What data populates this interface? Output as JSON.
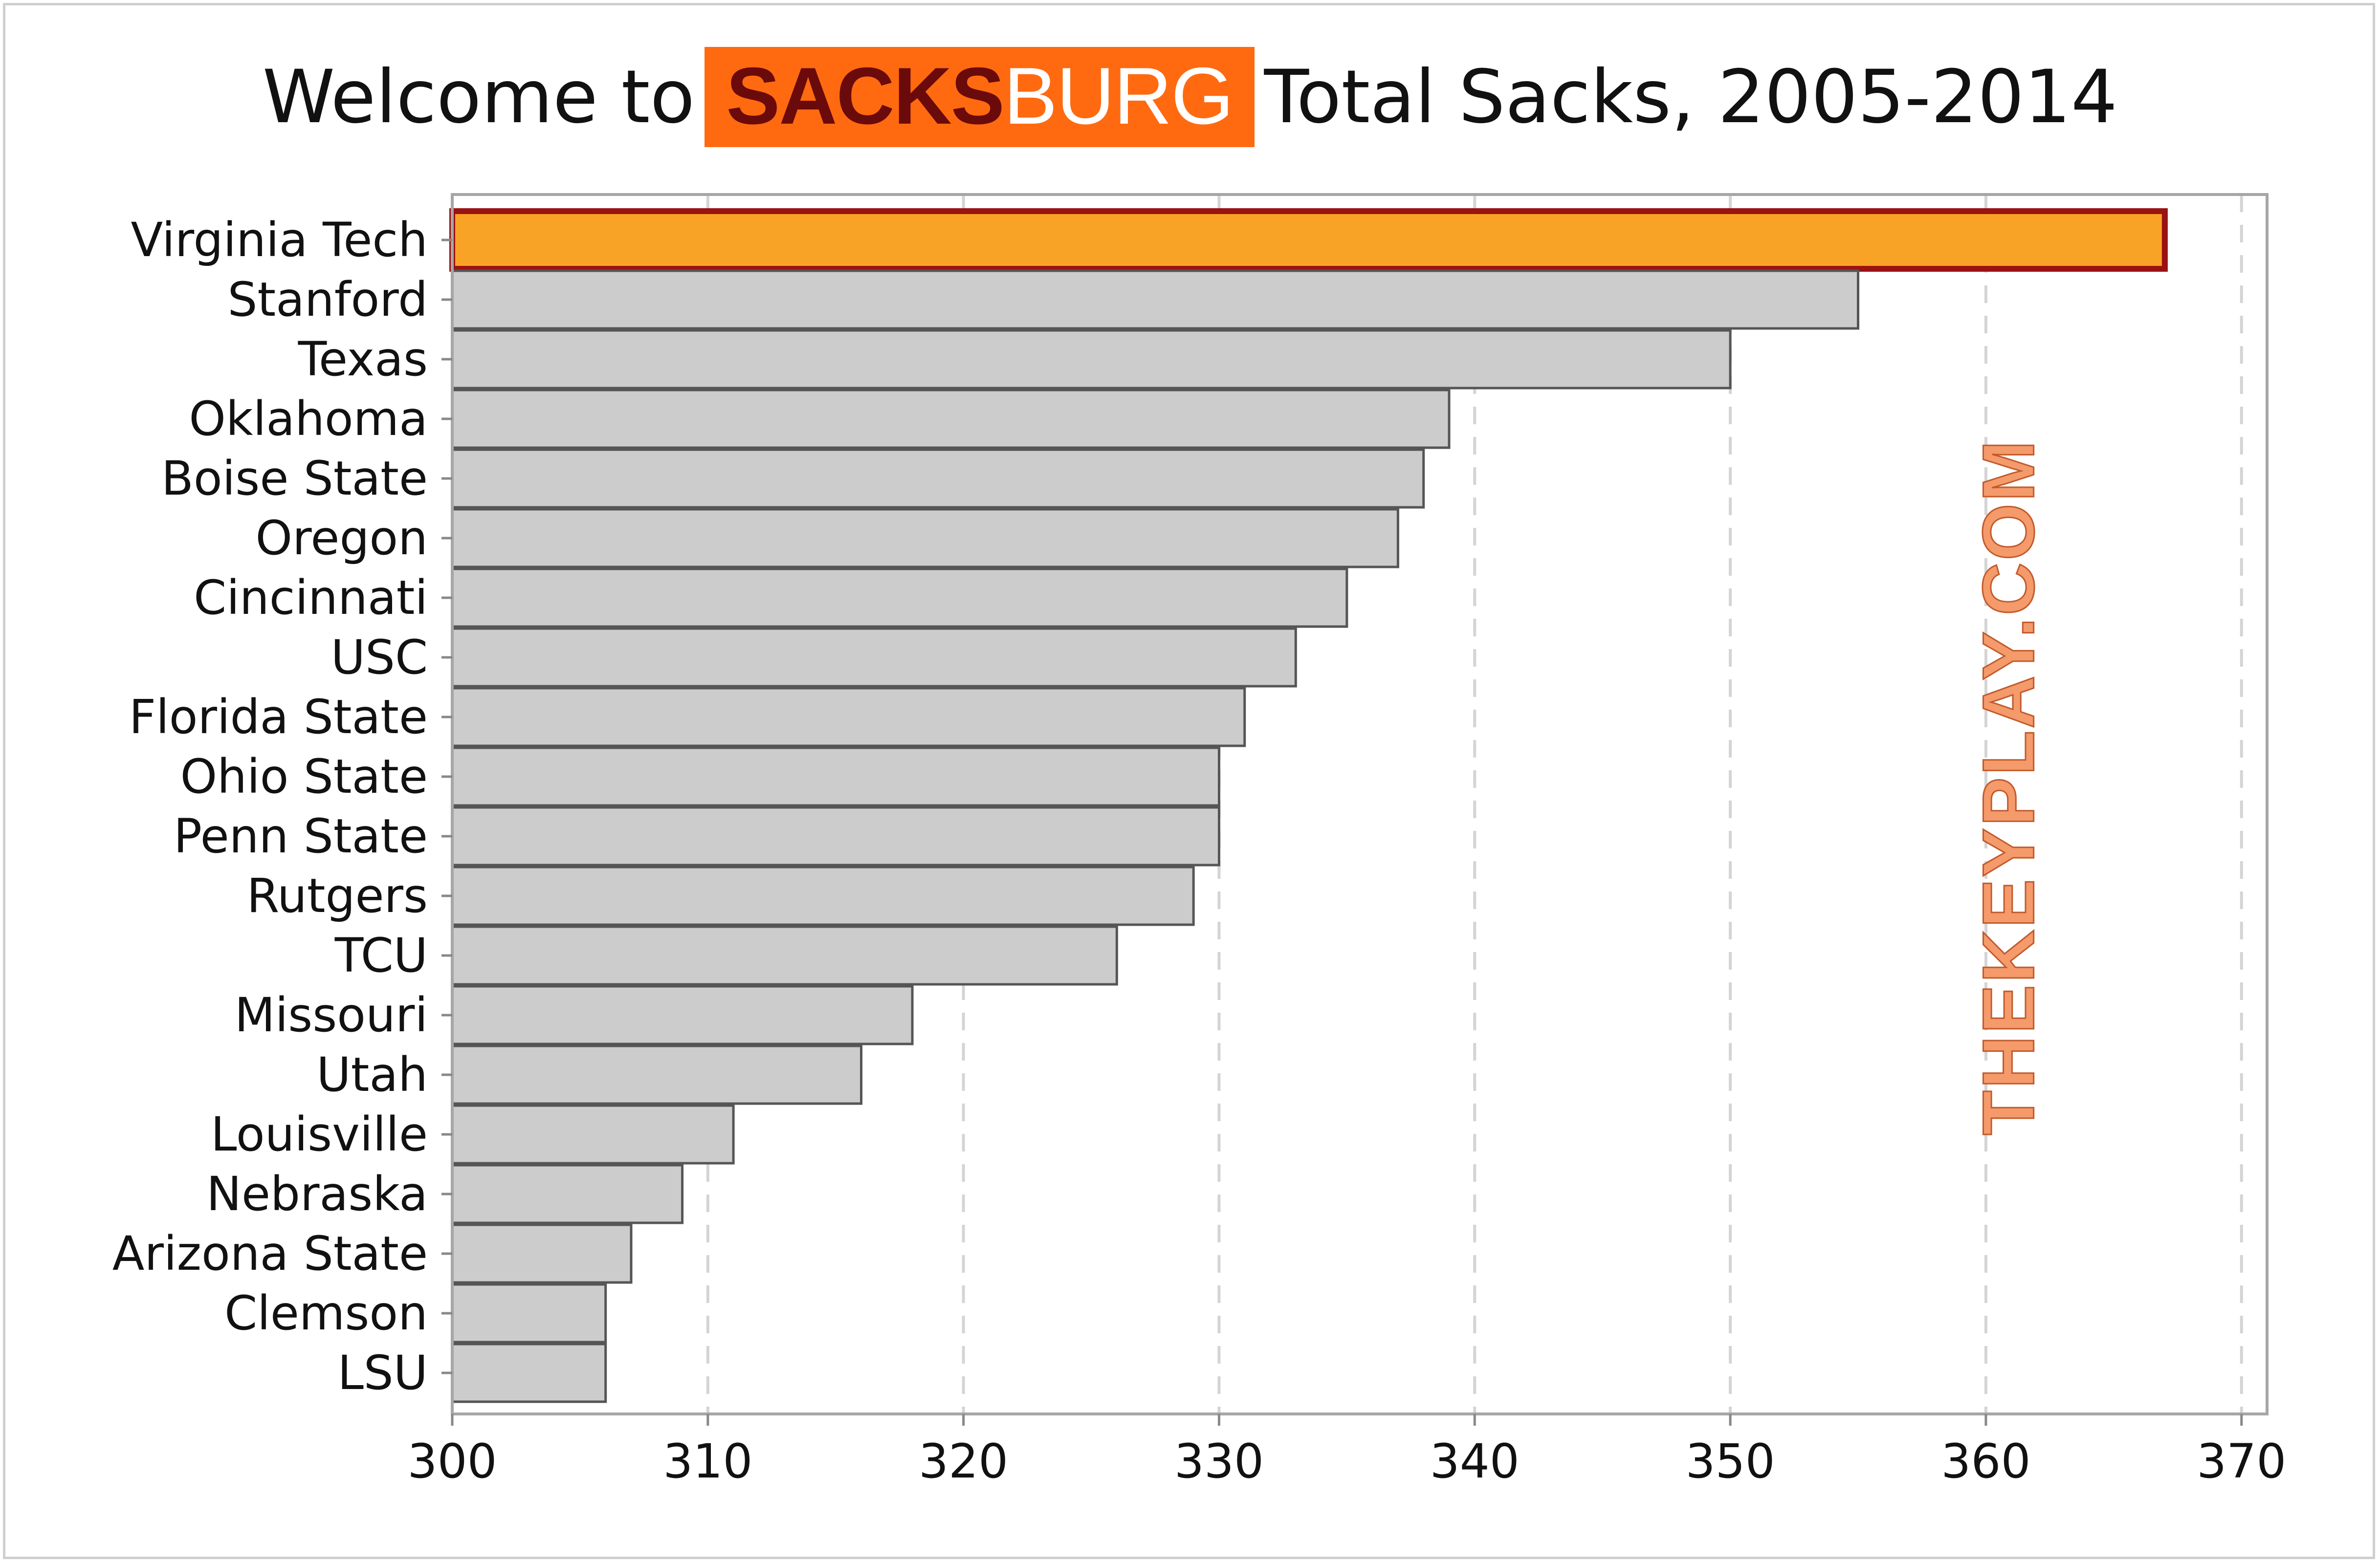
{
  "title": {
    "prefix": "Welcome to",
    "logo_part1": "SACKS",
    "logo_part2": "BURG",
    "suffix": "Total Sacks, 2005-2014"
  },
  "watermark": "THEKEYPLAY.COM",
  "colors": {
    "highlight_fill": "#f9a326",
    "highlight_stroke": "#9b1212",
    "bar_fill": "#cccccc",
    "bar_stroke": "#555555",
    "logo_background": "#ff6a10",
    "logo_text_dark": "#6b0a0a",
    "watermark": "#f49a6b"
  },
  "chart_data": {
    "type": "bar",
    "orientation": "horizontal",
    "categories": [
      "Virginia Tech",
      "Stanford",
      "Texas",
      "Oklahoma",
      "Boise State",
      "Oregon",
      "Cincinnati",
      "USC",
      "Florida State",
      "Ohio State",
      "Penn State",
      "Rutgers",
      "TCU",
      "Missouri",
      "Utah",
      "Louisville",
      "Nebraska",
      "Arizona State",
      "Clemson",
      "LSU"
    ],
    "values": [
      367,
      355,
      350,
      339,
      338,
      337,
      335,
      333,
      331,
      330,
      330,
      329,
      326,
      318,
      316,
      311,
      309,
      307,
      306,
      306
    ],
    "highlighted_category": "Virginia Tech",
    "xlim": [
      300,
      371
    ],
    "xticks": [
      300,
      310,
      320,
      330,
      340,
      350,
      360,
      370
    ],
    "grid": "vertical dashed",
    "xlabel": "",
    "ylabel": ""
  }
}
